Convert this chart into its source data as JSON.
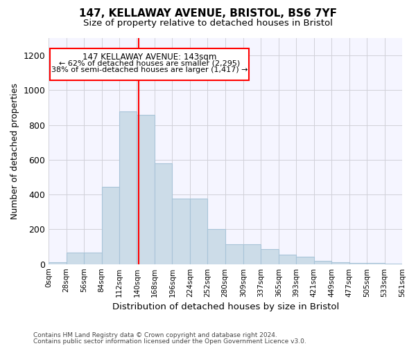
{
  "title": "147, KELLAWAY AVENUE, BRISTOL, BS6 7YF",
  "subtitle": "Size of property relative to detached houses in Bristol",
  "xlabel": "Distribution of detached houses by size in Bristol",
  "ylabel": "Number of detached properties",
  "footer_line1": "Contains HM Land Registry data © Crown copyright and database right 2024.",
  "footer_line2": "Contains public sector information licensed under the Open Government Licence v3.0.",
  "bar_color": "#ccdce8",
  "bar_edge_color": "#a8c4d8",
  "background_color": "#f5f5ff",
  "grid_color": "#d0d0d8",
  "redline_x": 143,
  "annotation_line1": "147 KELLAWAY AVENUE: 143sqm",
  "annotation_line2": "← 62% of detached houses are smaller (2,295)",
  "annotation_line3": "38% of semi-detached houses are larger (1,417) →",
  "bin_edges": [
    0,
    28,
    56,
    84,
    112,
    140,
    168,
    196,
    224,
    252,
    280,
    309,
    337,
    365,
    393,
    421,
    449,
    477,
    505,
    533,
    561
  ],
  "bar_heights": [
    12,
    65,
    65,
    445,
    880,
    860,
    580,
    375,
    375,
    200,
    115,
    115,
    85,
    55,
    42,
    20,
    10,
    5,
    5,
    3
  ],
  "ylim": [
    0,
    1300
  ],
  "yticks": [
    0,
    200,
    400,
    600,
    800,
    1000,
    1200
  ],
  "bin_labels": [
    "0sqm",
    "28sqm",
    "56sqm",
    "84sqm",
    "112sqm",
    "140sqm",
    "168sqm",
    "196sqm",
    "224sqm",
    "252sqm",
    "280sqm",
    "309sqm",
    "337sqm",
    "365sqm",
    "393sqm",
    "421sqm",
    "449sqm",
    "477sqm",
    "505sqm",
    "533sqm",
    "561sqm"
  ],
  "figsize": [
    6.0,
    5.0
  ],
  "dpi": 100
}
